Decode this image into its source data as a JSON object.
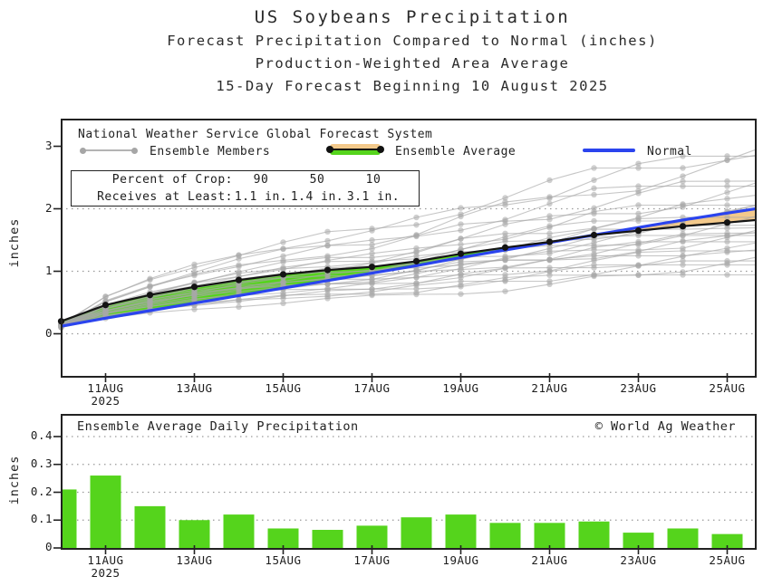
{
  "header": {
    "title1": "US Soybeans Precipitation",
    "title2": "Forecast Precipitation Compared to Normal (inches)",
    "title3": "Production-Weighted Area Average",
    "title4": "15-Day Forecast Beginning 10 August 2025"
  },
  "legend": {
    "source_line": "National Weather Service Global Forecast System",
    "items": [
      {
        "label": "Ensemble Members"
      },
      {
        "label": "Ensemble Average"
      },
      {
        "label": "Normal"
      }
    ]
  },
  "stats_box": {
    "row1_label": "Percent of Crop:",
    "row2_label": "Receives at Least:",
    "percentiles": [
      "90",
      "50",
      "10"
    ],
    "amounts": [
      "1.1 in.",
      "1.4 in.",
      "3.1 in."
    ]
  },
  "colors": {
    "green": "#55d41c",
    "orange": "#f3c98b",
    "blue": "#2b44ee",
    "member_gray": "#a8a8a8",
    "avg_black": "#141414",
    "axis": "#222222",
    "grid": "#9a9a9a"
  },
  "chart_data": [
    {
      "type": "line",
      "name": "cumulative-forecast-precipitation",
      "ylabel": "inches",
      "days": [
        "10AUG",
        "11AUG",
        "12AUG",
        "13AUG",
        "14AUG",
        "15AUG",
        "16AUG",
        "17AUG",
        "18AUG",
        "19AUG",
        "20AUG",
        "21AUG",
        "22AUG",
        "23AUG",
        "24AUG",
        "25AUG"
      ],
      "x_tick_labels": [
        "11AUG",
        "13AUG",
        "15AUG",
        "17AUG",
        "19AUG",
        "21AUG",
        "23AUG",
        "25AUG"
      ],
      "x_year_label": "2025",
      "yticks": [
        0,
        1,
        2,
        3
      ],
      "gridlines": [
        0,
        1,
        2
      ],
      "ylim": [
        -0.7,
        3.44
      ],
      "series": [
        {
          "name": "Ensemble Average",
          "values": [
            0.2,
            0.46,
            0.62,
            0.75,
            0.86,
            0.95,
            1.02,
            1.07,
            1.16,
            1.28,
            1.38,
            1.47,
            1.58,
            1.65,
            1.72,
            1.78
          ]
        },
        {
          "name": "Normal",
          "values": [
            0.12,
            0.25,
            0.37,
            0.49,
            0.61,
            0.73,
            0.85,
            0.97,
            1.09,
            1.22,
            1.34,
            1.46,
            1.58,
            1.7,
            1.82,
            1.93
          ]
        }
      ],
      "fills": {
        "above_normal": "green",
        "below_normal": "orange"
      },
      "ensemble_members": {
        "note": "approx 26 gray member traces with dots each day; spread at 25AUG roughly 1.0 to 2.9 in.",
        "scales": [
          0.54,
          0.58,
          0.62,
          0.66,
          0.7,
          0.74,
          0.78,
          0.82,
          0.85,
          0.88,
          0.91,
          0.94,
          0.97,
          1.0,
          1.03,
          1.07,
          1.11,
          1.15,
          1.2,
          1.26,
          1.33,
          1.41,
          1.5,
          1.6,
          1.68,
          1.74
        ]
      }
    },
    {
      "type": "bar",
      "name": "daily-precipitation",
      "title": "Ensemble Average Daily Precipitation",
      "watermark": "© World Ag Weather",
      "ylabel": "inches",
      "categories": [
        "10AUG",
        "11AUG",
        "12AUG",
        "13AUG",
        "14AUG",
        "15AUG",
        "16AUG",
        "17AUG",
        "18AUG",
        "19AUG",
        "20AUG",
        "21AUG",
        "22AUG",
        "23AUG",
        "24AUG",
        "25AUG"
      ],
      "values": [
        0.21,
        0.26,
        0.15,
        0.1,
        0.12,
        0.07,
        0.065,
        0.08,
        0.11,
        0.12,
        0.09,
        0.09,
        0.095,
        0.055,
        0.07,
        0.05
      ],
      "x_tick_labels": [
        "11AUG",
        "13AUG",
        "15AUG",
        "17AUG",
        "19AUG",
        "21AUG",
        "23AUG",
        "25AUG"
      ],
      "x_year_label": "2025",
      "yticks": [
        0,
        0.1,
        0.2,
        0.3,
        0.4
      ],
      "ylim": [
        0,
        0.48
      ]
    }
  ]
}
